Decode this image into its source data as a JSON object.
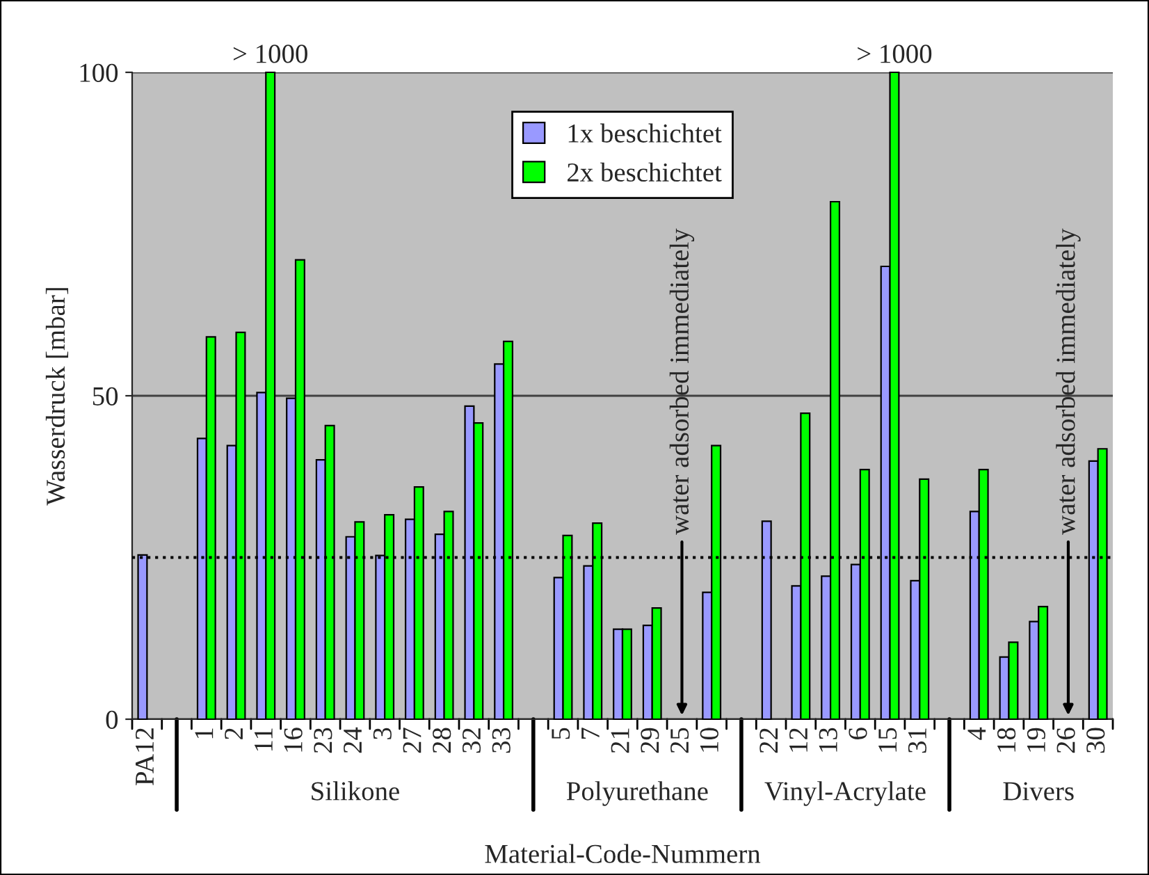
{
  "chart_data": {
    "type": "bar",
    "ylabel": "Wasserdruck [mbar]",
    "xlabel": "Material-Code-Nummern",
    "categories": [
      "PA12",
      null,
      "1",
      "2",
      "11",
      "16",
      "23",
      "24",
      "3",
      "27",
      "28",
      "32",
      "33",
      null,
      "5",
      "7",
      "21",
      "29",
      "25",
      "10",
      null,
      "22",
      "12",
      "13",
      "6",
      "15",
      "31",
      null,
      "4",
      "18",
      "19",
      "26",
      "30"
    ],
    "series": [
      {
        "name": "1x beschichtet",
        "color": "#9999ff",
        "values": [
          25.4,
          null,
          43.4,
          42.3,
          50.5,
          49.6,
          40.1,
          28.2,
          25.3,
          30.9,
          28.6,
          48.4,
          54.9,
          null,
          21.9,
          23.7,
          13.9,
          14.5,
          null,
          19.6,
          null,
          30.6,
          20.6,
          22.1,
          23.9,
          70,
          21.4,
          null,
          32.1,
          9.6,
          15.1,
          null,
          39.9
        ]
      },
      {
        "name": "2x beschichtet",
        "color": "#00ff00",
        "values": [
          null,
          null,
          59.1,
          59.8,
          100,
          71,
          45.4,
          30.5,
          31.6,
          35.9,
          32.1,
          45.8,
          58.4,
          null,
          28.4,
          30.3,
          13.9,
          17.2,
          null,
          42.3,
          null,
          null,
          47.3,
          80,
          38.6,
          100,
          37.1,
          null,
          38.6,
          11.9,
          17.4,
          null,
          41.8
        ]
      }
    ],
    "ylim": [
      0,
      100
    ],
    "yticks": [
      0,
      50,
      100
    ],
    "grid": "y",
    "legend": "top",
    "ref_lines": [
      {
        "axis": "y",
        "value": 25,
        "line_style": "dotted",
        "color": "#000000"
      }
    ],
    "annotations": [
      {
        "text": "> 1000",
        "x": "11",
        "y": 100
      },
      {
        "text": "> 1000",
        "x": "15",
        "y": 100
      },
      "water adsorbed immediately",
      "water adsorbed immediately",
      "Silikone",
      "Polyurethane",
      "Vinyl-Acrylate",
      "Divers"
    ]
  }
}
